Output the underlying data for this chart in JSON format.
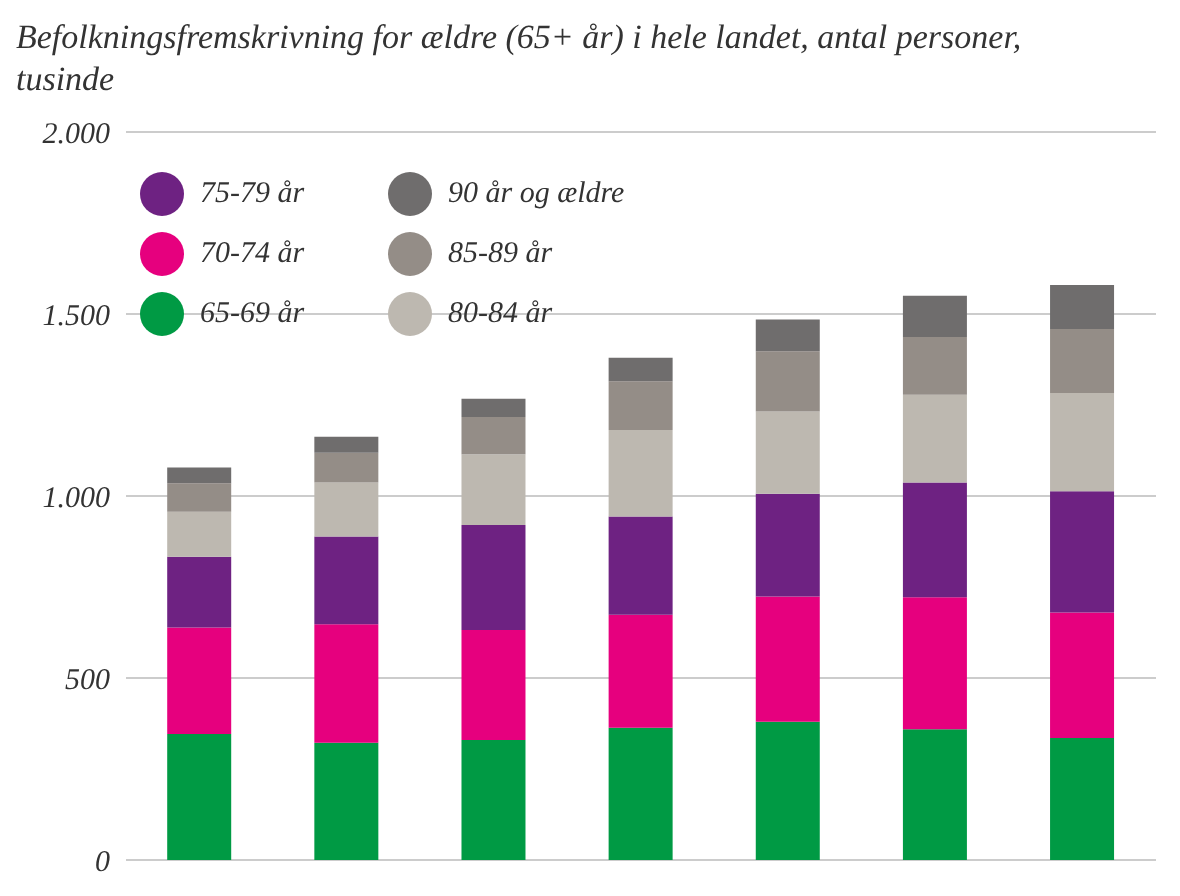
{
  "chart_data": {
    "type": "bar",
    "title": "Befolkningsfremskrivning for ældre (65+ år) i hele landet, antal personer, tusinde",
    "categories": [
      null,
      null,
      null,
      null,
      null,
      null,
      null
    ],
    "stacked": true,
    "series": [
      {
        "name": "65-69 år",
        "color": "#009a44",
        "values": [
          346,
          322,
          330,
          363,
          380,
          359,
          335
        ]
      },
      {
        "name": "70-74 år",
        "color": "#e6007e",
        "values": [
          293,
          326,
          302,
          311,
          344,
          363,
          345
        ]
      },
      {
        "name": "75-79 år",
        "color": "#6e2282",
        "values": [
          194,
          241,
          288,
          270,
          282,
          315,
          333
        ]
      },
      {
        "name": "80-84 år",
        "color": "#bdb8b0",
        "values": [
          124,
          148,
          195,
          237,
          226,
          241,
          270
        ]
      },
      {
        "name": "85-89 år",
        "color": "#948d87",
        "values": [
          78,
          82,
          102,
          134,
          166,
          159,
          176
        ]
      },
      {
        "name": "90 år og ældre",
        "color": "#6f6d6d",
        "values": [
          43,
          44,
          50,
          65,
          87,
          113,
          121
        ]
      }
    ],
    "ylim": [
      0,
      2000
    ],
    "yticks": [
      0,
      500,
      {
        "value": 1000,
        "label": "1.000"
      },
      {
        "value": 1500,
        "label": "1.500"
      },
      {
        "value": 2000,
        "label": "2.000"
      }
    ],
    "grid": "y",
    "legend": "top left",
    "tick_labels": "y"
  }
}
